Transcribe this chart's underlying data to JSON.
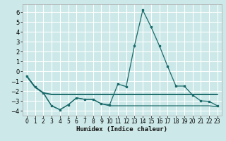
{
  "xlabel": "Humidex (Indice chaleur)",
  "bg_color": "#cde8e8",
  "grid_color": "#ffffff",
  "line_color": "#1a6b6b",
  "xlim": [
    -0.5,
    23.5
  ],
  "ylim": [
    -4.5,
    6.8
  ],
  "yticks": [
    -4,
    -3,
    -2,
    -1,
    0,
    1,
    2,
    3,
    4,
    5,
    6
  ],
  "xticks": [
    0,
    1,
    2,
    3,
    4,
    5,
    6,
    7,
    8,
    9,
    10,
    11,
    12,
    13,
    14,
    15,
    16,
    17,
    18,
    19,
    20,
    21,
    22,
    23
  ],
  "line1_x": [
    0,
    1,
    2,
    3,
    4,
    5,
    6,
    7,
    8,
    9,
    10,
    11,
    12,
    13,
    14,
    15,
    16,
    17,
    18,
    19,
    20,
    21,
    22,
    23
  ],
  "line1_y": [
    -0.5,
    -1.6,
    -2.2,
    -3.5,
    -3.9,
    -3.4,
    -2.7,
    -2.85,
    -2.85,
    -3.3,
    -3.4,
    -1.3,
    -1.55,
    2.6,
    6.2,
    4.5,
    2.6,
    0.5,
    -1.5,
    -1.5,
    -2.4,
    -3.0,
    -3.05,
    -3.5
  ],
  "line2_x": [
    0,
    1,
    2,
    3,
    4,
    5,
    6,
    7,
    8,
    9,
    10,
    11,
    12,
    13,
    14,
    15,
    16,
    17,
    18,
    19,
    20,
    21,
    22,
    23
  ],
  "line2_y": [
    -0.5,
    -1.6,
    -2.2,
    -2.35,
    -2.35,
    -2.35,
    -2.35,
    -2.35,
    -2.35,
    -2.35,
    -2.35,
    -2.35,
    -2.35,
    -2.35,
    -2.35,
    -2.35,
    -2.35,
    -2.35,
    -2.35,
    -2.35,
    -2.35,
    -2.35,
    -2.35,
    -2.35
  ],
  "line3_x": [
    0,
    1,
    2,
    3,
    4,
    5,
    6,
    7,
    8,
    9,
    10,
    11,
    12,
    13,
    14,
    15,
    16,
    17,
    18,
    19,
    20,
    21,
    22,
    23
  ],
  "line3_y": [
    -0.5,
    -1.6,
    -2.2,
    -3.5,
    -3.9,
    -3.4,
    -2.7,
    -2.85,
    -2.85,
    -3.3,
    -3.5,
    -3.5,
    -3.5,
    -3.5,
    -3.5,
    -3.5,
    -3.5,
    -3.5,
    -3.5,
    -3.5,
    -3.5,
    -3.5,
    -3.5,
    -3.6
  ]
}
